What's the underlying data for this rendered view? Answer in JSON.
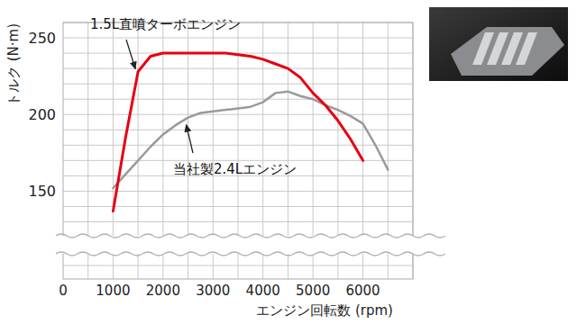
{
  "chart_data": {
    "type": "line",
    "y_label": "トルク (N·m)",
    "x_label": "エンジン回転数 (rpm)",
    "x": [
      1000,
      1250,
      1500,
      1750,
      2000,
      2250,
      2500,
      2750,
      3000,
      3250,
      3500,
      3750,
      4000,
      4250,
      4500,
      4750,
      5000,
      5250,
      5500,
      5750,
      6000,
      6250,
      6500
    ],
    "series": [
      {
        "name": "1.5L直噴ターボエンジン",
        "color": "#e60012",
        "values": [
          137,
          185,
          228,
          238,
          240,
          240,
          240,
          240,
          240,
          240,
          239,
          238,
          236,
          233,
          230,
          224,
          214,
          206,
          196,
          184,
          170,
          null,
          null
        ]
      },
      {
        "name": "当社製2.4Lエンジン",
        "color": "#9a9a9a",
        "values": [
          152,
          161,
          170,
          179,
          187,
          193,
          198,
          201,
          202,
          203,
          204,
          205,
          208,
          214,
          215,
          212,
          210,
          206,
          203,
          199,
          194,
          180,
          164
        ]
      }
    ],
    "xlim": [
      0,
      7000
    ],
    "xticks": [
      0,
      1000,
      2000,
      3000,
      4000,
      5000,
      6000
    ],
    "ylim": [
      125,
      260
    ],
    "yticks": [
      150,
      200,
      250
    ],
    "grid": true
  }
}
